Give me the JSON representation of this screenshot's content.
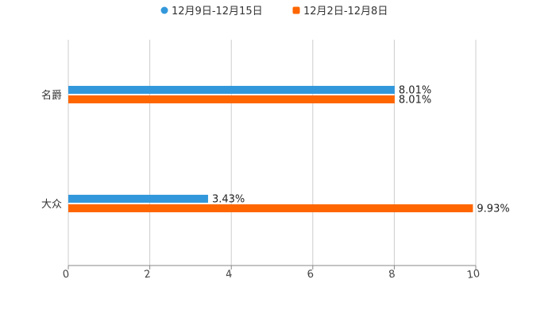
{
  "chart_data": {
    "type": "bar",
    "orientation": "horizontal",
    "categories": [
      "名爵",
      "大众"
    ],
    "series": [
      {
        "name": "12月9日-12月15日",
        "color": "#3398DB",
        "values": [
          8.01,
          3.43
        ]
      },
      {
        "name": "12月2日-12月8日",
        "color": "#FF6600",
        "values": [
          8.01,
          9.93
        ]
      }
    ],
    "value_suffix": "%",
    "xlim": [
      0,
      10
    ],
    "xticks": [
      0,
      2,
      4,
      6,
      8,
      10
    ],
    "grid": true,
    "legend": "top-center",
    "title": "",
    "xlabel": "",
    "ylabel": ""
  }
}
